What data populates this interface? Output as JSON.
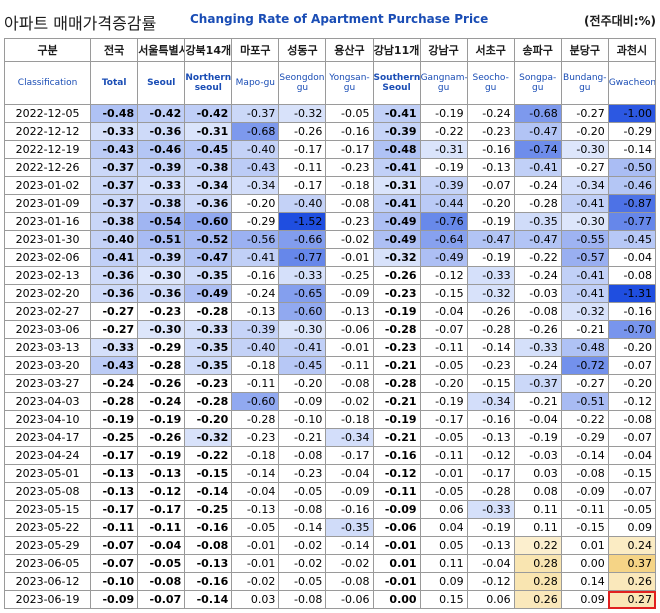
{
  "title": {
    "korean": "아파트 매매가격증감률",
    "english": "Changing Rate of Apartment Purchase Price",
    "unit": "(전주대비:%)"
  },
  "header": {
    "date_kr": "구분",
    "date_en": "Classification",
    "columns": [
      {
        "kr": "전국",
        "en": "Total"
      },
      {
        "kr": "서울특별시",
        "en": "Seoul"
      },
      {
        "kr": "강북14개",
        "en": "Northern seoul"
      },
      {
        "kr": "마포구",
        "en": "Mapo-gu"
      },
      {
        "kr": "성동구",
        "en": "Seongdong-gu"
      },
      {
        "kr": "용산구",
        "en": "Yongsan-gu"
      },
      {
        "kr": "강남11개",
        "en": "Southern Seoul"
      },
      {
        "kr": "강남구",
        "en": "Gangnam-gu"
      },
      {
        "kr": "서초구",
        "en": "Seocho-gu"
      },
      {
        "kr": "송파구",
        "en": "Songpa-gu"
      },
      {
        "kr": "분당구",
        "en": "Bundang-gu"
      },
      {
        "kr": "과천시",
        "en": "Gwacheon"
      }
    ]
  },
  "rows": [
    {
      "date": "2022-12-05",
      "v": [
        "-0.48",
        "-0.42",
        "-0.42",
        "-0.37",
        "-0.32",
        "-0.05",
        "-0.41",
        "-0.19",
        "-0.24",
        "-0.68",
        "-0.27",
        "-1.00"
      ]
    },
    {
      "date": "2022-12-12",
      "v": [
        "-0.33",
        "-0.36",
        "-0.31",
        "-0.68",
        "-0.26",
        "-0.16",
        "-0.39",
        "-0.22",
        "-0.23",
        "-0.47",
        "-0.20",
        "-0.29"
      ]
    },
    {
      "date": "2022-12-19",
      "v": [
        "-0.43",
        "-0.46",
        "-0.45",
        "-0.40",
        "-0.17",
        "-0.17",
        "-0.48",
        "-0.31",
        "-0.16",
        "-0.74",
        "-0.30",
        "-0.14"
      ]
    },
    {
      "date": "2022-12-26",
      "v": [
        "-0.37",
        "-0.39",
        "-0.38",
        "-0.43",
        "-0.11",
        "-0.23",
        "-0.41",
        "-0.19",
        "-0.13",
        "-0.41",
        "-0.27",
        "-0.50"
      ]
    },
    {
      "date": "2023-01-02",
      "v": [
        "-0.37",
        "-0.33",
        "-0.34",
        "-0.34",
        "-0.17",
        "-0.18",
        "-0.31",
        "-0.39",
        "-0.07",
        "-0.24",
        "-0.34",
        "-0.46"
      ]
    },
    {
      "date": "2023-01-09",
      "v": [
        "-0.37",
        "-0.38",
        "-0.36",
        "-0.20",
        "-0.40",
        "-0.08",
        "-0.41",
        "-0.44",
        "-0.20",
        "-0.28",
        "-0.41",
        "-0.87"
      ]
    },
    {
      "date": "2023-01-16",
      "v": [
        "-0.38",
        "-0.54",
        "-0.60",
        "-0.29",
        "-1.52",
        "-0.23",
        "-0.49",
        "-0.76",
        "-0.19",
        "-0.35",
        "-0.30",
        "-0.77"
      ]
    },
    {
      "date": "2023-01-30",
      "v": [
        "-0.40",
        "-0.51",
        "-0.52",
        "-0.56",
        "-0.66",
        "-0.02",
        "-0.49",
        "-0.64",
        "-0.47",
        "-0.47",
        "-0.55",
        "-0.45"
      ]
    },
    {
      "date": "2023-02-06",
      "v": [
        "-0.41",
        "-0.39",
        "-0.47",
        "-0.41",
        "-0.77",
        "-0.01",
        "-0.32",
        "-0.49",
        "-0.19",
        "-0.22",
        "-0.57",
        "-0.04"
      ]
    },
    {
      "date": "2023-02-13",
      "v": [
        "-0.36",
        "-0.30",
        "-0.35",
        "-0.16",
        "-0.33",
        "-0.25",
        "-0.26",
        "-0.12",
        "-0.33",
        "-0.24",
        "-0.41",
        "-0.08"
      ]
    },
    {
      "date": "2023-02-20",
      "v": [
        "-0.36",
        "-0.36",
        "-0.49",
        "-0.24",
        "-0.65",
        "-0.09",
        "-0.23",
        "-0.15",
        "-0.32",
        "-0.03",
        "-0.41",
        "-1.31"
      ]
    },
    {
      "date": "2023-02-27",
      "v": [
        "-0.27",
        "-0.23",
        "-0.28",
        "-0.13",
        "-0.60",
        "-0.13",
        "-0.19",
        "-0.04",
        "-0.26",
        "-0.08",
        "-0.32",
        "-0.16"
      ]
    },
    {
      "date": "2023-03-06",
      "v": [
        "-0.27",
        "-0.30",
        "-0.33",
        "-0.39",
        "-0.30",
        "-0.06",
        "-0.28",
        "-0.07",
        "-0.28",
        "-0.26",
        "-0.21",
        "-0.70"
      ]
    },
    {
      "date": "2023-03-13",
      "v": [
        "-0.33",
        "-0.29",
        "-0.35",
        "-0.40",
        "-0.41",
        "-0.01",
        "-0.23",
        "-0.11",
        "-0.14",
        "-0.33",
        "-0.48",
        "-0.20"
      ]
    },
    {
      "date": "2023-03-20",
      "v": [
        "-0.43",
        "-0.28",
        "-0.35",
        "-0.18",
        "-0.45",
        "-0.11",
        "-0.21",
        "-0.05",
        "-0.23",
        "-0.24",
        "-0.72",
        "-0.07"
      ]
    },
    {
      "date": "2023-03-27",
      "v": [
        "-0.24",
        "-0.26",
        "-0.23",
        "-0.11",
        "-0.20",
        "-0.08",
        "-0.28",
        "-0.20",
        "-0.15",
        "-0.37",
        "-0.27",
        "-0.20"
      ]
    },
    {
      "date": "2023-04-03",
      "v": [
        "-0.28",
        "-0.24",
        "-0.28",
        "-0.60",
        "-0.09",
        "-0.02",
        "-0.21",
        "-0.19",
        "-0.34",
        "-0.21",
        "-0.51",
        "-0.12"
      ]
    },
    {
      "date": "2023-04-10",
      "v": [
        "-0.19",
        "-0.19",
        "-0.20",
        "-0.28",
        "-0.10",
        "-0.18",
        "-0.19",
        "-0.17",
        "-0.16",
        "-0.04",
        "-0.22",
        "-0.08"
      ]
    },
    {
      "date": "2023-04-17",
      "v": [
        "-0.25",
        "-0.26",
        "-0.32",
        "-0.23",
        "-0.21",
        "-0.34",
        "-0.21",
        "-0.05",
        "-0.13",
        "-0.19",
        "-0.29",
        "-0.07"
      ]
    },
    {
      "date": "2023-04-24",
      "v": [
        "-0.17",
        "-0.19",
        "-0.22",
        "-0.18",
        "-0.08",
        "-0.17",
        "-0.16",
        "-0.11",
        "-0.12",
        "-0.03",
        "-0.14",
        "-0.04"
      ]
    },
    {
      "date": "2023-05-01",
      "v": [
        "-0.13",
        "-0.13",
        "-0.15",
        "-0.14",
        "-0.23",
        "-0.04",
        "-0.12",
        "-0.01",
        "-0.17",
        "0.03",
        "-0.08",
        "-0.15"
      ]
    },
    {
      "date": "2023-05-08",
      "v": [
        "-0.13",
        "-0.12",
        "-0.14",
        "-0.04",
        "-0.05",
        "-0.09",
        "-0.11",
        "-0.05",
        "-0.28",
        "0.08",
        "-0.09",
        "-0.07"
      ]
    },
    {
      "date": "2023-05-15",
      "v": [
        "-0.17",
        "-0.17",
        "-0.25",
        "-0.13",
        "-0.08",
        "-0.16",
        "-0.09",
        "0.06",
        "-0.33",
        "0.11",
        "-0.11",
        "-0.05"
      ]
    },
    {
      "date": "2023-05-22",
      "v": [
        "-0.11",
        "-0.11",
        "-0.16",
        "-0.05",
        "-0.14",
        "-0.35",
        "-0.06",
        "0.04",
        "-0.19",
        "0.11",
        "-0.15",
        "0.09"
      ]
    },
    {
      "date": "2023-05-29",
      "v": [
        "-0.07",
        "-0.04",
        "-0.08",
        "-0.01",
        "-0.02",
        "-0.14",
        "-0.01",
        "0.05",
        "-0.13",
        "0.22",
        "0.01",
        "0.24"
      ]
    },
    {
      "date": "2023-06-05",
      "v": [
        "-0.07",
        "-0.05",
        "-0.13",
        "-0.01",
        "-0.02",
        "-0.02",
        "0.01",
        "0.11",
        "-0.04",
        "0.28",
        "0.00",
        "0.37"
      ]
    },
    {
      "date": "2023-06-12",
      "v": [
        "-0.10",
        "-0.08",
        "-0.16",
        "-0.02",
        "-0.05",
        "-0.08",
        "-0.01",
        "0.09",
        "-0.12",
        "0.28",
        "0.14",
        "0.26"
      ]
    },
    {
      "date": "2023-06-19",
      "v": [
        "-0.09",
        "-0.07",
        "-0.14",
        "0.03",
        "-0.08",
        "-0.06",
        "0.00",
        "0.15",
        "0.06",
        "0.26",
        "0.09",
        "0.27"
      ]
    }
  ],
  "colors": {
    "negative_light": "#dde6fb",
    "negative_strong": "#1f4ee0",
    "positive_light": "#fdf3d7",
    "positive_strong": "#f4cf78",
    "header_english": "#1a4db5",
    "highlight_outline": "#e02020"
  }
}
